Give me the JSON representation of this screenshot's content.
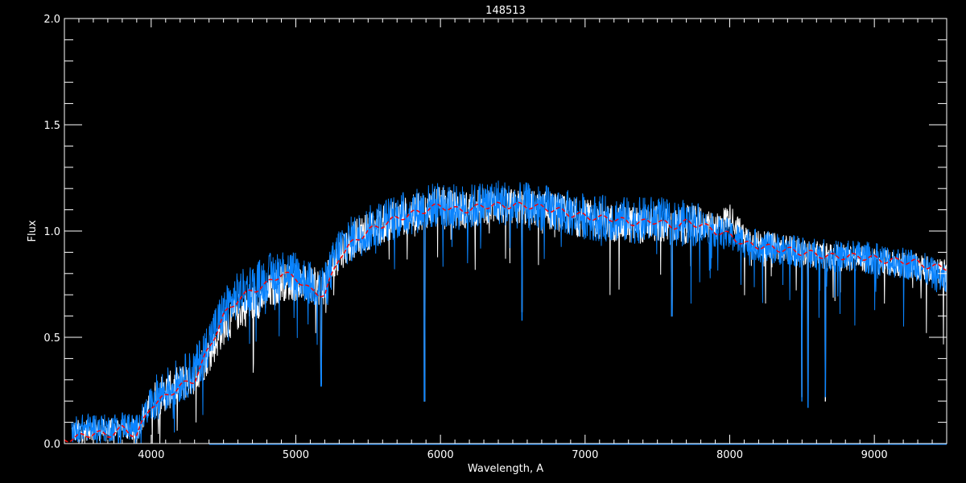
{
  "chart_data": {
    "type": "line",
    "title": "148513",
    "xlabel": "Wavelength, A",
    "ylabel": "Flux",
    "xlim": [
      3400,
      9500
    ],
    "ylim": [
      0.0,
      2.0
    ],
    "x_ticks": [
      4000,
      5000,
      6000,
      7000,
      8000,
      9000
    ],
    "x_tick_labels": [
      "4000",
      "5000",
      "6000",
      "7000",
      "8000",
      "9000"
    ],
    "y_ticks": [
      0.0,
      0.5,
      1.0,
      1.5,
      2.0
    ],
    "y_tick_labels": [
      "0.0",
      "0.5",
      "1.0",
      "1.5",
      "2.0"
    ],
    "grid": false,
    "background": "#000000",
    "x": [
      3400,
      3500,
      3600,
      3700,
      3800,
      3900,
      4000,
      4100,
      4200,
      4300,
      4400,
      4500,
      4600,
      4700,
      4800,
      4900,
      5000,
      5100,
      5200,
      5300,
      5400,
      5500,
      5600,
      5700,
      5800,
      5900,
      6000,
      6100,
      6200,
      6300,
      6400,
      6500,
      6600,
      6700,
      6800,
      6900,
      7000,
      7100,
      7200,
      7300,
      7400,
      7500,
      7600,
      7700,
      7800,
      7900,
      8000,
      8100,
      8200,
      8300,
      8400,
      8500,
      8600,
      8700,
      8800,
      8900,
      9000,
      9100,
      9200,
      9300,
      9400,
      9500
    ],
    "series": [
      {
        "color": "#ffffff",
        "style": "solid",
        "range": [
          3450,
          9500
        ],
        "values": [
          0.05,
          0.06,
          0.07,
          0.06,
          0.08,
          0.06,
          0.2,
          0.24,
          0.28,
          0.32,
          0.42,
          0.55,
          0.62,
          0.66,
          0.7,
          0.76,
          0.76,
          0.74,
          0.74,
          0.9,
          0.96,
          1.0,
          1.03,
          1.06,
          1.08,
          1.1,
          1.12,
          1.1,
          1.1,
          1.12,
          1.12,
          1.11,
          1.11,
          1.1,
          1.09,
          1.07,
          1.06,
          1.05,
          1.04,
          1.03,
          1.03,
          1.04,
          1.01,
          1.03,
          1.03,
          1.03,
          1.07,
          0.97,
          0.94,
          0.93,
          0.92,
          0.9,
          0.89,
          0.88,
          0.88,
          0.87,
          0.86,
          0.85,
          0.84,
          0.83,
          0.82,
          0.8
        ],
        "absorption_lines": [
          [
            5175,
            0.28
          ],
          [
            5890,
            0.2
          ],
          [
            6563,
            0.62
          ],
          [
            7600,
            0.6
          ],
          [
            8498,
            0.22
          ],
          [
            8542,
            0.18
          ],
          [
            8662,
            0.2
          ]
        ]
      },
      {
        "color": "#0a84ff",
        "style": "solid",
        "range": [
          3450,
          9500
        ],
        "values": [
          0.06,
          0.07,
          0.08,
          0.07,
          0.09,
          0.07,
          0.2,
          0.25,
          0.3,
          0.34,
          0.48,
          0.62,
          0.7,
          0.74,
          0.78,
          0.82,
          0.8,
          0.75,
          0.74,
          0.92,
          0.97,
          1.01,
          1.04,
          1.07,
          1.09,
          1.11,
          1.13,
          1.11,
          1.11,
          1.13,
          1.14,
          1.12,
          1.12,
          1.11,
          1.1,
          1.08,
          1.07,
          1.06,
          1.06,
          1.05,
          1.05,
          1.06,
          1.03,
          1.04,
          1.03,
          1.0,
          0.98,
          0.95,
          0.93,
          0.92,
          0.91,
          0.9,
          0.89,
          0.88,
          0.88,
          0.88,
          0.87,
          0.86,
          0.85,
          0.84,
          0.8,
          0.76
        ],
        "absorption_lines": [
          [
            5175,
            0.27
          ],
          [
            5890,
            0.2
          ],
          [
            6563,
            0.58
          ],
          [
            7600,
            0.6
          ],
          [
            8498,
            0.2
          ],
          [
            8542,
            0.17
          ],
          [
            8662,
            0.22
          ]
        ]
      },
      {
        "color": "#ff0000",
        "style": "dashed",
        "range": [
          3400,
          9500
        ],
        "values": [
          0.02,
          0.03,
          0.05,
          0.04,
          0.07,
          0.04,
          0.18,
          0.22,
          0.27,
          0.3,
          0.45,
          0.6,
          0.68,
          0.72,
          0.75,
          0.8,
          0.78,
          0.72,
          0.7,
          0.88,
          0.95,
          1.0,
          1.03,
          1.06,
          1.08,
          1.1,
          1.12,
          1.1,
          1.1,
          1.12,
          1.12,
          1.12,
          1.12,
          1.11,
          1.1,
          1.08,
          1.07,
          1.06,
          1.06,
          1.04,
          1.04,
          1.05,
          1.02,
          1.04,
          1.03,
          1.0,
          0.98,
          0.94,
          0.93,
          0.92,
          0.91,
          0.9,
          0.89,
          0.88,
          0.88,
          0.88,
          0.87,
          0.86,
          0.86,
          0.85,
          0.83,
          0.83
        ]
      },
      {
        "color": "#0a84ff",
        "style": "solid",
        "range": [
          4400,
          9500
        ],
        "values_constant": 0.0
      }
    ]
  }
}
